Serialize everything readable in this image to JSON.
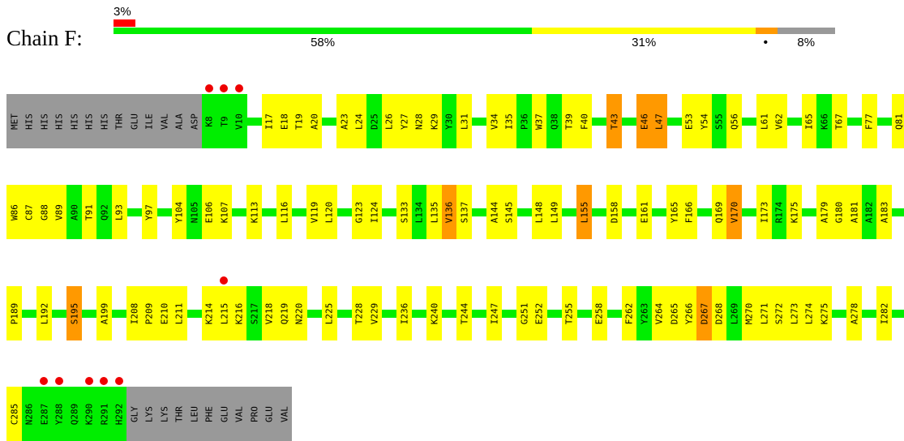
{
  "title": "Chain F:",
  "summary": {
    "segments": [
      {
        "name": "green",
        "color": "#00ee00",
        "fraction": 0.58,
        "label": "58%"
      },
      {
        "name": "yellow",
        "color": "#ffff00",
        "fraction": 0.31,
        "label": "31%"
      },
      {
        "name": "orange",
        "color": "#ff9900",
        "fraction": 0.03,
        "label": ""
      },
      {
        "name": "grey",
        "color": "#999999",
        "fraction": 0.08,
        "label": "8%"
      }
    ],
    "top_segment": {
      "color": "#ff0000",
      "fraction": 0.03,
      "label": "3%"
    },
    "dot": "•"
  },
  "colors": {
    "green": "#00ee00",
    "yellow": "#ffff00",
    "orange": "#ff9900",
    "grey": "#999999",
    "marker": "#ee0000"
  },
  "rows": [
    {
      "residues": [
        {
          "l": "MET",
          "c": "grey"
        },
        {
          "l": "HIS",
          "c": "grey"
        },
        {
          "l": "HIS",
          "c": "grey"
        },
        {
          "l": "HIS",
          "c": "grey"
        },
        {
          "l": "HIS",
          "c": "grey"
        },
        {
          "l": "HIS",
          "c": "grey"
        },
        {
          "l": "HIS",
          "c": "grey"
        },
        {
          "l": "THR",
          "c": "grey"
        },
        {
          "l": "GLU",
          "c": "grey"
        },
        {
          "l": "ILE",
          "c": "grey"
        },
        {
          "l": "VAL",
          "c": "grey"
        },
        {
          "l": "ALA",
          "c": "grey"
        },
        {
          "l": "ASP",
          "c": "grey"
        },
        {
          "l": "K8",
          "c": "green",
          "m": true
        },
        {
          "l": "T9",
          "c": "green",
          "m": true
        },
        {
          "l": "V10",
          "c": "green",
          "m": true
        },
        null,
        {
          "l": "I17",
          "c": "yellow"
        },
        {
          "l": "E18",
          "c": "yellow"
        },
        {
          "l": "T19",
          "c": "yellow"
        },
        {
          "l": "A20",
          "c": "yellow"
        },
        null,
        {
          "l": "A23",
          "c": "yellow"
        },
        {
          "l": "L24",
          "c": "yellow"
        },
        {
          "l": "D25",
          "c": "green"
        },
        {
          "l": "L26",
          "c": "yellow"
        },
        {
          "l": "Y27",
          "c": "yellow"
        },
        {
          "l": "N28",
          "c": "yellow"
        },
        {
          "l": "K29",
          "c": "yellow"
        },
        {
          "l": "Y30",
          "c": "green"
        },
        {
          "l": "L31",
          "c": "yellow"
        },
        null,
        {
          "l": "V34",
          "c": "yellow"
        },
        {
          "l": "I35",
          "c": "yellow"
        },
        {
          "l": "P36",
          "c": "green"
        },
        {
          "l": "W37",
          "c": "yellow"
        },
        {
          "l": "Q38",
          "c": "green"
        },
        {
          "l": "T39",
          "c": "yellow"
        },
        {
          "l": "F40",
          "c": "yellow"
        },
        null,
        {
          "l": "T43",
          "c": "orange"
        },
        null,
        {
          "l": "E46",
          "c": "orange"
        },
        {
          "l": "L47",
          "c": "orange"
        },
        null,
        {
          "l": "E53",
          "c": "yellow"
        },
        {
          "l": "Y54",
          "c": "yellow"
        },
        {
          "l": "S55",
          "c": "green"
        },
        {
          "l": "Q56",
          "c": "yellow"
        },
        null,
        {
          "l": "L61",
          "c": "yellow"
        },
        {
          "l": "V62",
          "c": "yellow"
        },
        null,
        {
          "l": "I65",
          "c": "yellow"
        },
        {
          "l": "K66",
          "c": "green"
        },
        {
          "l": "T67",
          "c": "yellow"
        },
        null,
        {
          "l": "F77",
          "c": "yellow"
        },
        null,
        {
          "l": "Q81",
          "c": "yellow"
        }
      ]
    },
    {
      "residues": [
        {
          "l": "W86",
          "c": "yellow"
        },
        {
          "l": "C87",
          "c": "yellow"
        },
        {
          "l": "G88",
          "c": "yellow"
        },
        {
          "l": "V89",
          "c": "yellow"
        },
        {
          "l": "A90",
          "c": "green"
        },
        {
          "l": "T91",
          "c": "yellow"
        },
        {
          "l": "Q92",
          "c": "green"
        },
        {
          "l": "L93",
          "c": "yellow"
        },
        null,
        {
          "l": "Y97",
          "c": "yellow"
        },
        null,
        {
          "l": "Y104",
          "c": "yellow"
        },
        {
          "l": "N105",
          "c": "green"
        },
        {
          "l": "E106",
          "c": "yellow"
        },
        {
          "l": "K107",
          "c": "yellow"
        },
        null,
        {
          "l": "K113",
          "c": "yellow"
        },
        null,
        {
          "l": "L116",
          "c": "yellow"
        },
        null,
        {
          "l": "V119",
          "c": "yellow"
        },
        {
          "l": "L120",
          "c": "yellow"
        },
        null,
        {
          "l": "G123",
          "c": "yellow"
        },
        {
          "l": "I124",
          "c": "yellow"
        },
        null,
        {
          "l": "S133",
          "c": "yellow"
        },
        {
          "l": "L134",
          "c": "green"
        },
        {
          "l": "L135",
          "c": "yellow"
        },
        {
          "l": "V136",
          "c": "orange"
        },
        {
          "l": "S137",
          "c": "yellow"
        },
        null,
        {
          "l": "A144",
          "c": "yellow"
        },
        {
          "l": "S145",
          "c": "yellow"
        },
        null,
        {
          "l": "L148",
          "c": "yellow"
        },
        {
          "l": "L149",
          "c": "yellow"
        },
        null,
        {
          "l": "L155",
          "c": "orange"
        },
        null,
        {
          "l": "D158",
          "c": "yellow"
        },
        null,
        {
          "l": "E161",
          "c": "yellow"
        },
        null,
        {
          "l": "Y165",
          "c": "yellow"
        },
        {
          "l": "F166",
          "c": "yellow"
        },
        null,
        {
          "l": "Q169",
          "c": "yellow"
        },
        {
          "l": "V170",
          "c": "orange"
        },
        null,
        {
          "l": "I173",
          "c": "yellow"
        },
        {
          "l": "R174",
          "c": "green"
        },
        {
          "l": "K175",
          "c": "yellow"
        },
        null,
        {
          "l": "A179",
          "c": "yellow"
        },
        {
          "l": "G180",
          "c": "yellow"
        },
        {
          "l": "A181",
          "c": "yellow"
        },
        {
          "l": "A182",
          "c": "green"
        },
        {
          "l": "A183",
          "c": "yellow"
        }
      ]
    },
    {
      "residues": [
        {
          "l": "P189",
          "c": "yellow"
        },
        null,
        {
          "l": "L192",
          "c": "yellow"
        },
        null,
        {
          "l": "S195",
          "c": "orange"
        },
        null,
        {
          "l": "A199",
          "c": "yellow"
        },
        null,
        {
          "l": "I208",
          "c": "yellow"
        },
        {
          "l": "P209",
          "c": "yellow"
        },
        {
          "l": "E210",
          "c": "yellow"
        },
        {
          "l": "L211",
          "c": "yellow"
        },
        null,
        {
          "l": "K214",
          "c": "yellow"
        },
        {
          "l": "L215",
          "c": "yellow",
          "m": true
        },
        {
          "l": "K216",
          "c": "yellow"
        },
        {
          "l": "S217",
          "c": "green"
        },
        {
          "l": "V218",
          "c": "yellow"
        },
        {
          "l": "Q219",
          "c": "yellow"
        },
        {
          "l": "N220",
          "c": "yellow"
        },
        null,
        {
          "l": "L225",
          "c": "yellow"
        },
        null,
        {
          "l": "T228",
          "c": "yellow"
        },
        {
          "l": "V229",
          "c": "yellow"
        },
        null,
        {
          "l": "I236",
          "c": "yellow"
        },
        null,
        {
          "l": "K240",
          "c": "yellow"
        },
        null,
        {
          "l": "T244",
          "c": "yellow"
        },
        null,
        {
          "l": "I247",
          "c": "yellow"
        },
        null,
        {
          "l": "G251",
          "c": "yellow"
        },
        {
          "l": "E252",
          "c": "yellow"
        },
        null,
        {
          "l": "T255",
          "c": "yellow"
        },
        null,
        {
          "l": "E258",
          "c": "yellow"
        },
        null,
        {
          "l": "F262",
          "c": "yellow"
        },
        {
          "l": "Y263",
          "c": "green"
        },
        {
          "l": "V264",
          "c": "yellow"
        },
        {
          "l": "D265",
          "c": "yellow"
        },
        {
          "l": "Y266",
          "c": "yellow"
        },
        {
          "l": "D267",
          "c": "orange"
        },
        {
          "l": "D268",
          "c": "yellow"
        },
        {
          "l": "L269",
          "c": "green"
        },
        {
          "l": "M270",
          "c": "yellow"
        },
        {
          "l": "L271",
          "c": "yellow"
        },
        {
          "l": "S272",
          "c": "yellow"
        },
        {
          "l": "L273",
          "c": "yellow"
        },
        {
          "l": "L274",
          "c": "yellow"
        },
        {
          "l": "K275",
          "c": "yellow"
        },
        null,
        {
          "l": "A278",
          "c": "yellow"
        },
        null,
        {
          "l": "I282",
          "c": "yellow"
        }
      ]
    },
    {
      "residues": [
        {
          "l": "C285",
          "c": "yellow"
        },
        {
          "l": "N286",
          "c": "green"
        },
        {
          "l": "E287",
          "c": "green",
          "m": true
        },
        {
          "l": "Y288",
          "c": "green",
          "m": true
        },
        {
          "l": "Q289",
          "c": "green"
        },
        {
          "l": "K290",
          "c": "green",
          "m": true
        },
        {
          "l": "R291",
          "c": "green",
          "m": true
        },
        {
          "l": "H292",
          "c": "green",
          "m": true
        },
        {
          "l": "GLY",
          "c": "grey"
        },
        {
          "l": "LYS",
          "c": "grey"
        },
        {
          "l": "LYS",
          "c": "grey"
        },
        {
          "l": "THR",
          "c": "grey"
        },
        {
          "l": "LEU",
          "c": "grey"
        },
        {
          "l": "PHE",
          "c": "grey"
        },
        {
          "l": "GLU",
          "c": "grey"
        },
        {
          "l": "VAL",
          "c": "grey"
        },
        {
          "l": "PRO",
          "c": "grey"
        },
        {
          "l": "GLU",
          "c": "grey"
        },
        {
          "l": "VAL",
          "c": "grey"
        }
      ]
    }
  ]
}
